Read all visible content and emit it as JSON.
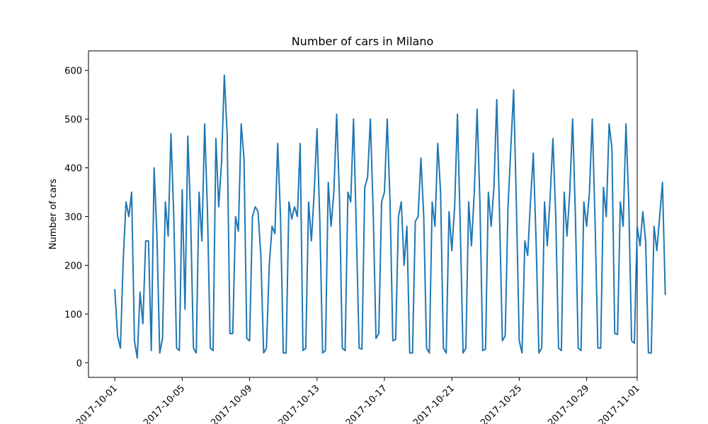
{
  "chart_data": {
    "type": "line",
    "title": "Number of cars in Milano",
    "xlabel": "",
    "ylabel": "Number of cars",
    "x_range": [
      "2017-10-01",
      "2017-10-31"
    ],
    "ylim": [
      0,
      600
    ],
    "grid": false,
    "color": "#1f77b4",
    "x_ticks": [
      "2017-10-01",
      "2017-10-05",
      "2017-10-09",
      "2017-10-13",
      "2017-10-17",
      "2017-10-21",
      "2017-10-25",
      "2017-10-29",
      "2017-11-01"
    ],
    "y_ticks": [
      0,
      100,
      200,
      300,
      400,
      500,
      600
    ],
    "series": [
      {
        "x_start": "2017-10-01 00:00",
        "step_hours": 4,
        "values": [
          150,
          55,
          30,
          210,
          330,
          300,
          350,
          45,
          10,
          145,
          80,
          250,
          250,
          25,
          400,
          260,
          20,
          50,
          330,
          260,
          470,
          300,
          30,
          25,
          355,
          110,
          465,
          300,
          30,
          20,
          350,
          250,
          490,
          310,
          30,
          25,
          460,
          320,
          410,
          590,
          470,
          60,
          60,
          300,
          270,
          490,
          420,
          50,
          45,
          300,
          320,
          310,
          220,
          20,
          30,
          200,
          280,
          265,
          450,
          300,
          20,
          20,
          330,
          295,
          320,
          300,
          450,
          25,
          30,
          330,
          250,
          350,
          480,
          290,
          20,
          25,
          370,
          280,
          350,
          510,
          340,
          30,
          25,
          350,
          330,
          500,
          270,
          30,
          28,
          360,
          380,
          500,
          310,
          50,
          60,
          330,
          350,
          500,
          330,
          45,
          48,
          300,
          330,
          200,
          280,
          20,
          20,
          290,
          300,
          420,
          300,
          30,
          20,
          330,
          280,
          450,
          350,
          30,
          20,
          310,
          230,
          320,
          510,
          280,
          20,
          30,
          330,
          240,
          350,
          520,
          330,
          25,
          28,
          350,
          280,
          360,
          540,
          300,
          45,
          55,
          320,
          440,
          560,
          320,
          45,
          20,
          250,
          220,
          330,
          430,
          250,
          20,
          30,
          330,
          240,
          340,
          460,
          300,
          30,
          25,
          350,
          260,
          350,
          500,
          300,
          30,
          25,
          330,
          280,
          350,
          500,
          290,
          30,
          30,
          360,
          300,
          490,
          440,
          60,
          58,
          330,
          280,
          490,
          330,
          45,
          40,
          280,
          240,
          310,
          250,
          20,
          20,
          280,
          230,
          300,
          370,
          140
        ]
      }
    ]
  }
}
